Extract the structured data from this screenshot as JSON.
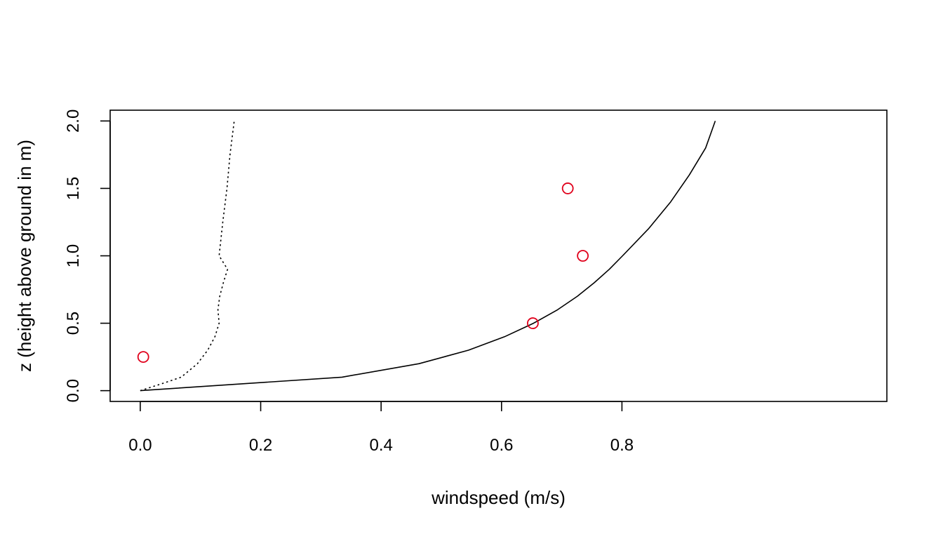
{
  "chart_data": {
    "type": "line",
    "title": "",
    "xlabel": "windspeed (m/s)",
    "ylabel": "z (height above ground in m)",
    "xlim": [
      -0.05,
      1.24
    ],
    "ylim": [
      -0.08,
      2.08
    ],
    "x_ticks": [
      0.0,
      0.2,
      0.4,
      0.6,
      0.8
    ],
    "x_tick_labels": [
      "0.0",
      "0.2",
      "0.4",
      "0.6",
      "0.8"
    ],
    "y_ticks": [
      0.0,
      0.5,
      1.0,
      1.5,
      2.0
    ],
    "y_tick_labels": [
      "0.0",
      "0.5",
      "1.0",
      "1.5",
      "2.0"
    ],
    "grid": false,
    "series": [
      {
        "style": "solid",
        "color": "#000000",
        "x": [
          0.0,
          0.335,
          0.463,
          0.545,
          0.605,
          0.653,
          0.693,
          0.726,
          0.754,
          0.779,
          0.801,
          0.844,
          0.881,
          0.912,
          0.939,
          0.955
        ],
        "y": [
          0.0,
          0.1,
          0.2,
          0.3,
          0.4,
          0.5,
          0.6,
          0.7,
          0.8,
          0.9,
          1.0,
          1.2,
          1.4,
          1.6,
          1.8,
          2.0
        ]
      },
      {
        "style": "dotted",
        "color": "#000000",
        "x": [
          0.0,
          0.035,
          0.068,
          0.095,
          0.112,
          0.124,
          0.131,
          0.129,
          0.132,
          0.138,
          0.145,
          0.131,
          0.137,
          0.144,
          0.149,
          0.156
        ],
        "y": [
          0.0,
          0.05,
          0.1,
          0.2,
          0.3,
          0.4,
          0.5,
          0.6,
          0.7,
          0.8,
          0.9,
          1.0,
          1.25,
          1.5,
          1.75,
          2.0
        ]
      },
      {
        "style": "points",
        "color": "#e0001b",
        "x": [
          0.005,
          0.652,
          0.735,
          0.71
        ],
        "y": [
          0.25,
          0.5,
          1.0,
          1.5
        ]
      }
    ]
  }
}
